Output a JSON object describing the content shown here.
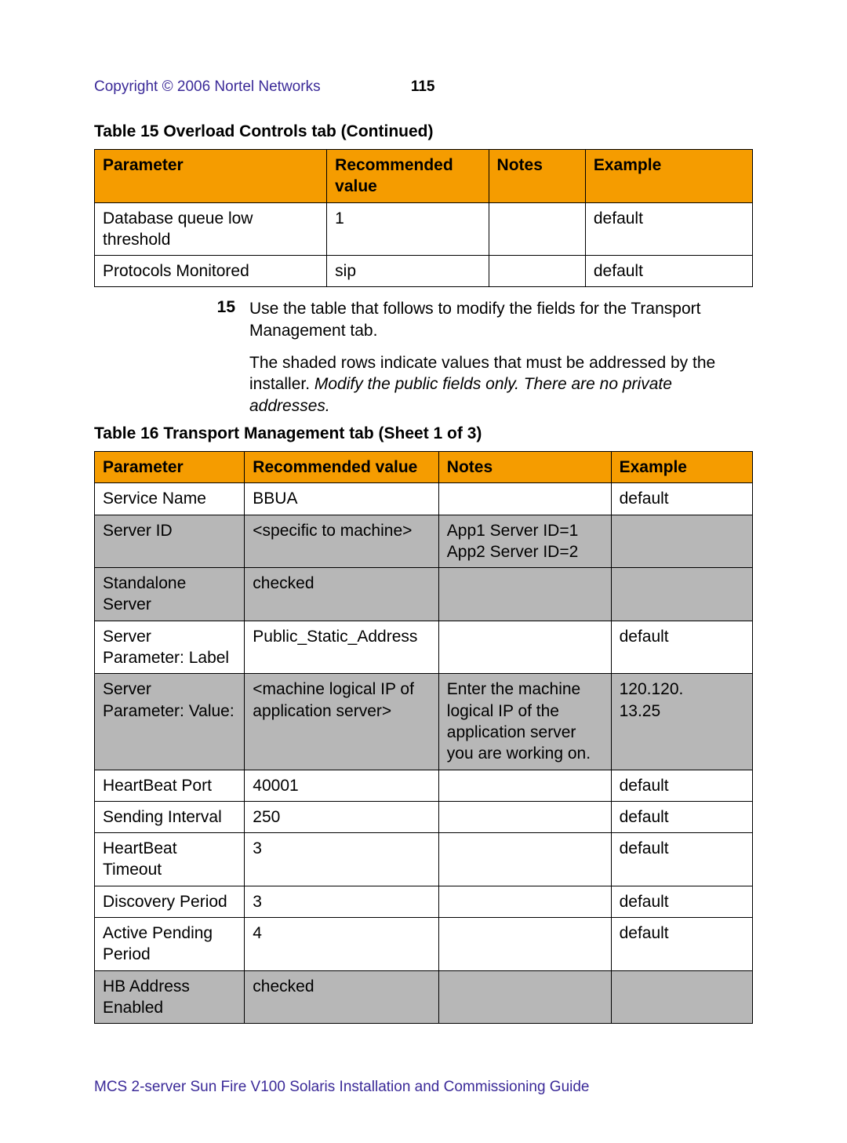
{
  "header": {
    "copyright": "Copyright © 2006 Nortel Networks",
    "page_number": "115"
  },
  "table15": {
    "caption": "Table 15  Overload Controls tab  (Continued)",
    "header_bg": "#f59c00",
    "columns": [
      "Parameter",
      "Recommended value",
      "Notes",
      "Example"
    ],
    "col_widths_pct": [
      35.3,
      24.6,
      14.7,
      25.4
    ],
    "rows": [
      {
        "shaded": false,
        "cells": [
          "Database queue low threshold",
          "1",
          "",
          "default"
        ]
      },
      {
        "shaded": false,
        "cells": [
          "Protocols Monitored",
          "sip",
          "",
          "default"
        ]
      }
    ]
  },
  "step": {
    "number": "15",
    "text": "Use the table that follows to modify the fields for the Transport Management tab.",
    "para_plain": "The shaded rows indicate values that must be addressed by the installer. ",
    "para_italic": "Modify the public fields only. There are no private addresses."
  },
  "table16": {
    "caption": "Table 16  Transport Management tab (Sheet 1 of 3)",
    "header_bg": "#f59c00",
    "shaded_bg": "#b7b7b7",
    "columns": [
      "Parameter",
      "Recommended value",
      "Notes",
      "Example"
    ],
    "col_widths_pct": [
      22.8,
      29.5,
      26.2,
      21.5
    ],
    "rows": [
      {
        "shaded": false,
        "cells": [
          "Service Name",
          "BBUA",
          "",
          "default"
        ]
      },
      {
        "shaded": true,
        "cells": [
          "Server ID",
          "<specific to machine>",
          "App1 Server ID=1\nApp2 Server ID=2",
          ""
        ]
      },
      {
        "shaded": true,
        "cells": [
          "Standalone Server",
          "checked",
          "",
          ""
        ]
      },
      {
        "shaded": false,
        "cells": [
          "Server Parameter: Label",
          "Public_Static_Address",
          "",
          "default"
        ]
      },
      {
        "shaded": true,
        "cells": [
          "Server Parameter: Value:",
          "<machine logical IP of application server>",
          "Enter the machine logical IP of the application server you are working on.",
          "120.120.\n13.25"
        ]
      },
      {
        "shaded": false,
        "cells": [
          "HeartBeat Port",
          "40001",
          "",
          "default"
        ]
      },
      {
        "shaded": false,
        "cells": [
          "Sending Interval",
          "250",
          "",
          "default"
        ]
      },
      {
        "shaded": false,
        "cells": [
          "HeartBeat Timeout",
          "3",
          "",
          "default"
        ]
      },
      {
        "shaded": false,
        "cells": [
          "Discovery Period",
          "3",
          "",
          "default"
        ]
      },
      {
        "shaded": false,
        "cells": [
          "Active Pending Period",
          "4",
          "",
          "default"
        ]
      },
      {
        "shaded": true,
        "cells": [
          "HB Address Enabled",
          "checked",
          "",
          ""
        ]
      }
    ]
  },
  "footer": {
    "text": "MCS 2-server Sun Fire V100 Solaris Installation and Commissioning Guide"
  },
  "colors": {
    "link": "#3b2a98",
    "header_bg": "#f59c00",
    "shaded_bg": "#b7b7b7",
    "text": "#000000",
    "page_bg": "#ffffff"
  },
  "fonts": {
    "body_size_pt": 16,
    "caption_weight": "bold"
  }
}
